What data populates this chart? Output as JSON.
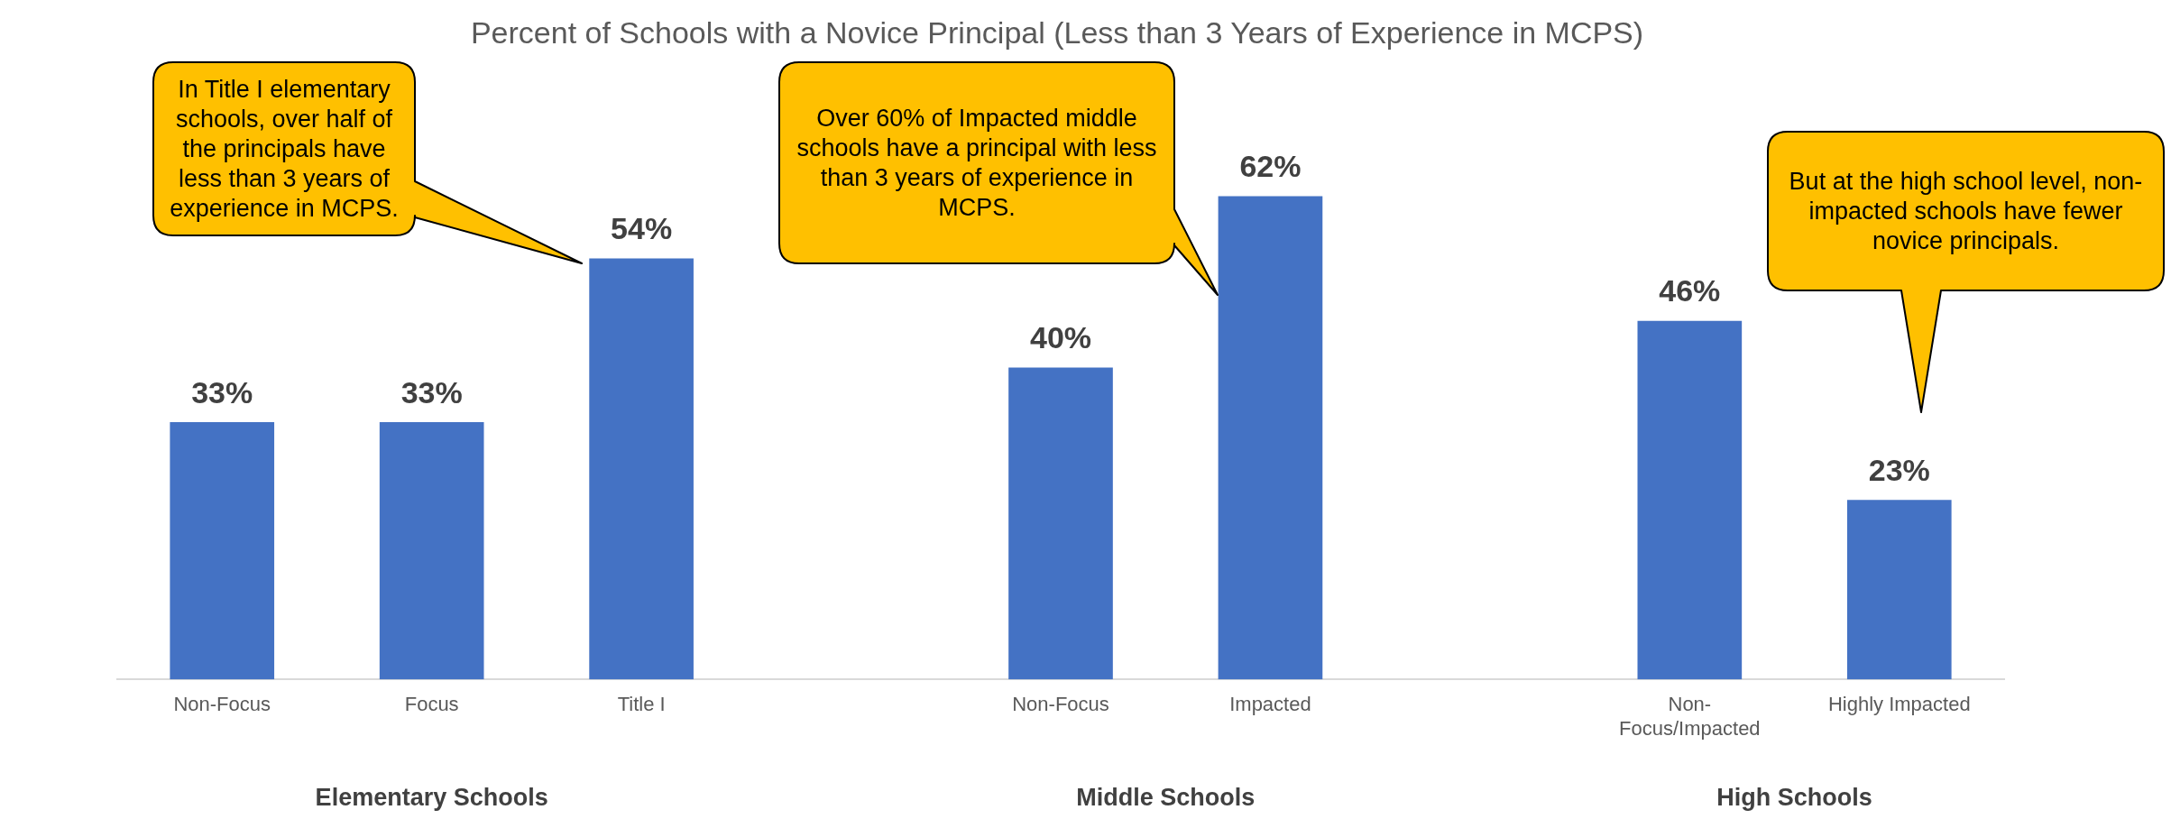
{
  "chart_data": {
    "type": "bar",
    "title": "Percent of Schools with a Novice Principal (Less than 3 Years of Experience in MCPS)",
    "categories": [
      "Non-Focus",
      "Focus",
      "Title I",
      null,
      "Non-Focus",
      "Impacted",
      null,
      "Non-Focus/Impacted",
      "Highly Impacted"
    ],
    "values": [
      33,
      33,
      54,
      null,
      40,
      62,
      null,
      46,
      23
    ],
    "value_labels": [
      "33%",
      "33%",
      "54%",
      null,
      "40%",
      "62%",
      null,
      "46%",
      "23%"
    ],
    "color": "#4472c4",
    "relative": false,
    "legend": false,
    "annotations": [
      "In Title I elementary schools, over half of the principals have less than 3 years of experience in MCPS.",
      "Over 60% of Impacted middle schools have a principal with less than 3 years of experience in MCPS.",
      "But at the high school level, non-impacted schools have fewer novice principals.",
      "Elementary Schools",
      "Middle Schools",
      "High Schools"
    ]
  }
}
